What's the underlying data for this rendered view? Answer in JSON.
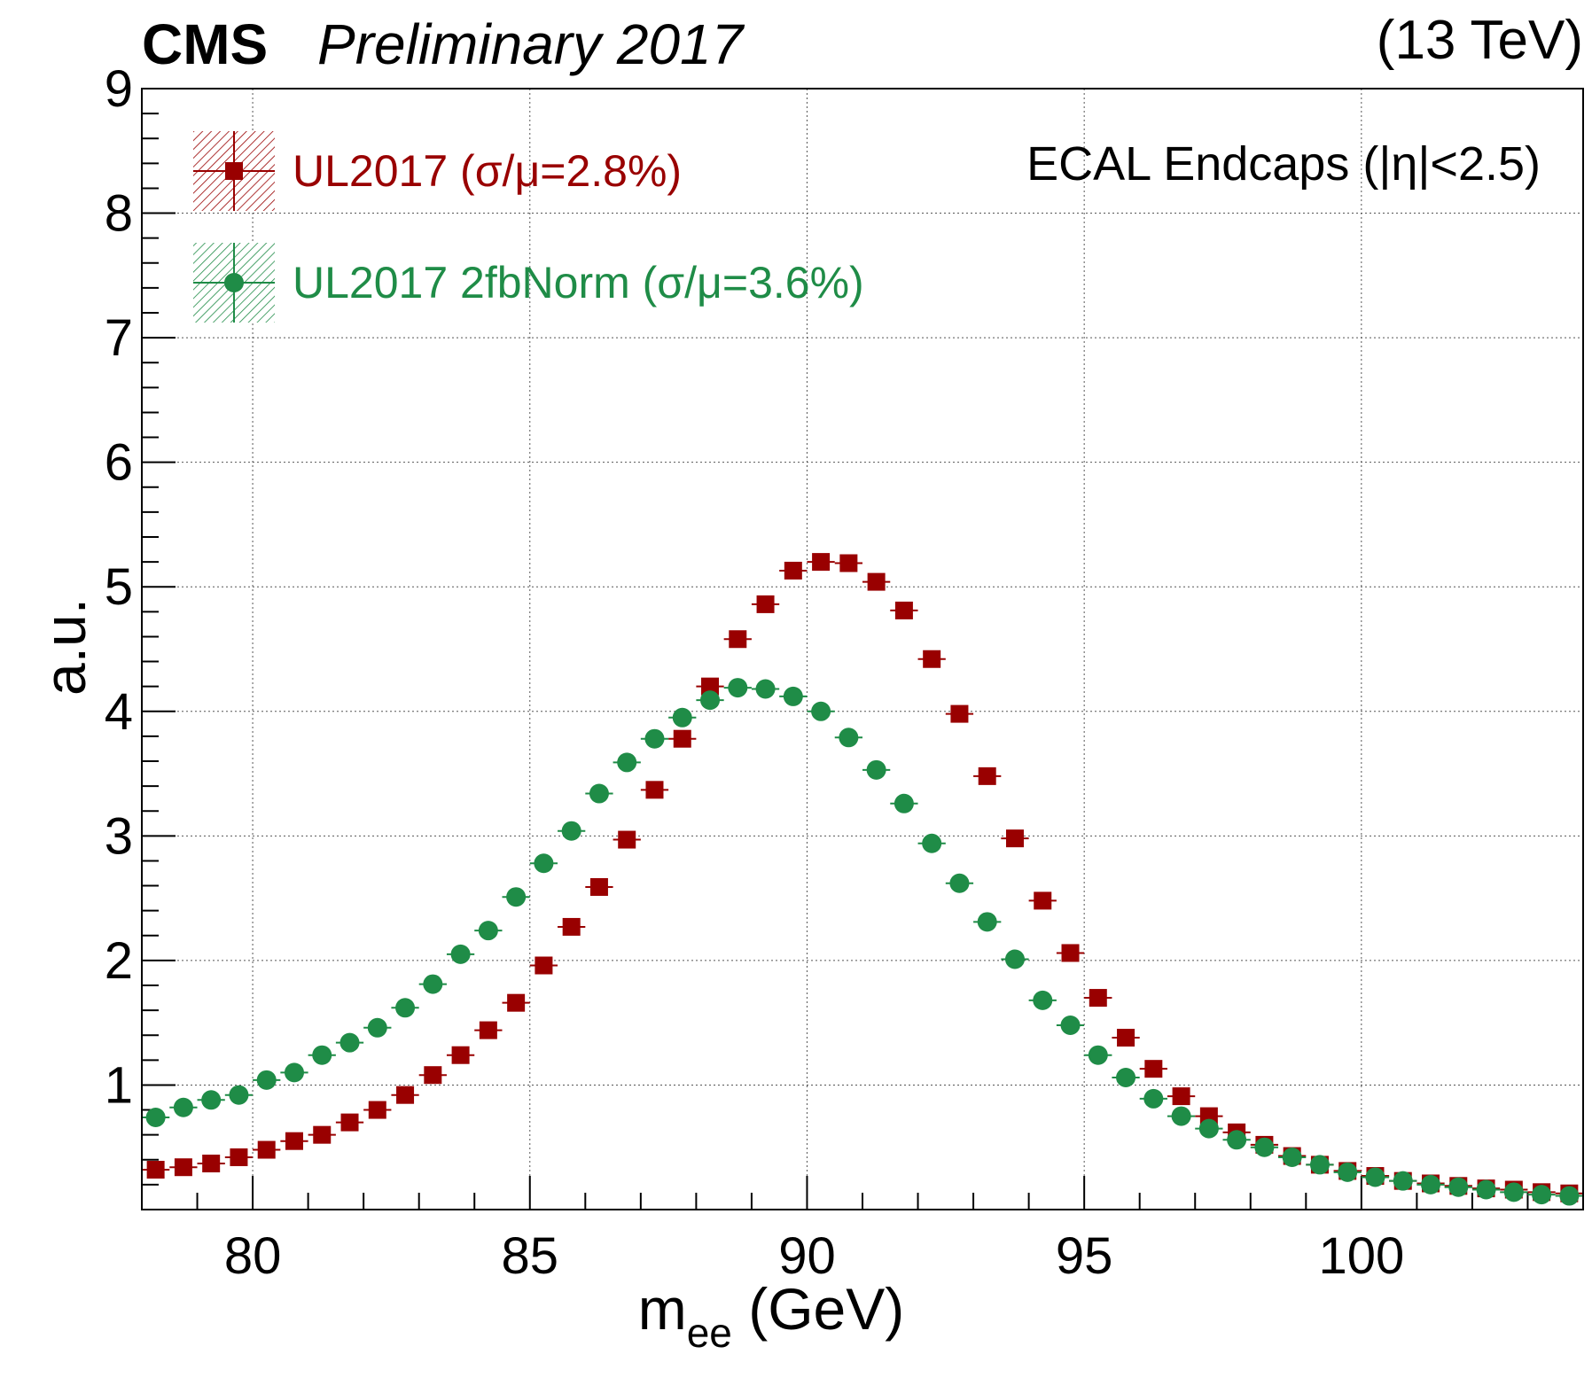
{
  "header": {
    "experiment": "CMS",
    "status": "Preliminary 2017",
    "energy": "(13 TeV)"
  },
  "annotation": "ECAL Endcaps (|η|<2.5)",
  "chart_data": {
    "type": "scatter",
    "xlabel": "m",
    "xlabel_subscript": "ee",
    "xlabel_unit": " (GeV)",
    "ylabel": "a.u.",
    "xlim": [
      78,
      104
    ],
    "ylim": [
      0,
      9
    ],
    "x_ticks": [
      80,
      85,
      90,
      95,
      100
    ],
    "y_ticks": [
      1,
      2,
      3,
      4,
      5,
      6,
      7,
      8,
      9
    ],
    "grid": true,
    "legend_position": "top-left",
    "x": [
      78.25,
      78.75,
      79.25,
      79.75,
      80.25,
      80.75,
      81.25,
      81.75,
      82.25,
      82.75,
      83.25,
      83.75,
      84.25,
      84.75,
      85.25,
      85.75,
      86.25,
      86.75,
      87.25,
      87.75,
      88.25,
      88.75,
      89.25,
      89.75,
      90.25,
      90.75,
      91.25,
      91.75,
      92.25,
      92.75,
      93.25,
      93.75,
      94.25,
      94.75,
      95.25,
      95.75,
      96.25,
      96.75,
      97.25,
      97.75,
      98.25,
      98.75,
      99.25,
      99.75,
      100.25,
      100.75,
      101.25,
      101.75,
      102.25,
      102.75,
      103.25,
      103.75
    ],
    "series": [
      {
        "name": "UL2017 (σ/μ=2.8%)",
        "marker": "square",
        "color": "#990000",
        "values": [
          0.32,
          0.34,
          0.37,
          0.42,
          0.48,
          0.55,
          0.6,
          0.7,
          0.8,
          0.92,
          1.08,
          1.24,
          1.44,
          1.66,
          1.96,
          2.27,
          2.59,
          2.97,
          3.37,
          3.78,
          4.2,
          4.58,
          4.86,
          5.13,
          5.2,
          5.19,
          5.04,
          4.81,
          4.42,
          3.98,
          3.48,
          2.98,
          2.48,
          2.06,
          1.7,
          1.38,
          1.13,
          0.91,
          0.75,
          0.62,
          0.52,
          0.43,
          0.36,
          0.31,
          0.27,
          0.23,
          0.21,
          0.19,
          0.17,
          0.16,
          0.14,
          0.13
        ]
      },
      {
        "name": "UL2017 2fbNorm (σ/μ=3.6%)",
        "marker": "circle",
        "color": "#1f8c47",
        "values": [
          0.74,
          0.82,
          0.88,
          0.92,
          1.04,
          1.1,
          1.24,
          1.34,
          1.46,
          1.62,
          1.81,
          2.05,
          2.24,
          2.51,
          2.78,
          3.04,
          3.34,
          3.59,
          3.78,
          3.95,
          4.09,
          4.19,
          4.18,
          4.12,
          4.0,
          3.79,
          3.53,
          3.26,
          2.94,
          2.62,
          2.31,
          2.01,
          1.68,
          1.48,
          1.24,
          1.06,
          0.89,
          0.75,
          0.65,
          0.56,
          0.5,
          0.42,
          0.36,
          0.3,
          0.26,
          0.23,
          0.2,
          0.18,
          0.16,
          0.14,
          0.12,
          0.11
        ]
      }
    ]
  }
}
